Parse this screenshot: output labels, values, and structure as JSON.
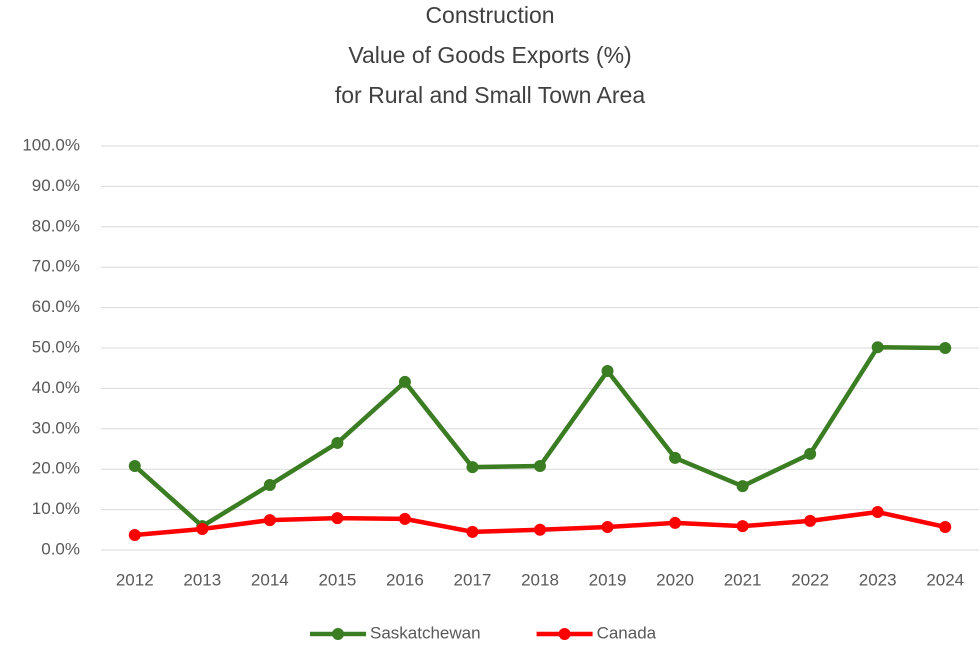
{
  "chart_data": {
    "type": "line",
    "title": [
      "Construction",
      "Value of Goods Exports (%)",
      "for Rural and Small Town Area"
    ],
    "categories": [
      "2012",
      "2013",
      "2014",
      "2015",
      "2016",
      "2017",
      "2018",
      "2019",
      "2020",
      "2021",
      "2022",
      "2023",
      "2024"
    ],
    "series": [
      {
        "name": "Saskatchewan",
        "color": "#3a7d22",
        "values": [
          20.8,
          5.9,
          16.1,
          26.5,
          41.6,
          20.5,
          20.8,
          44.3,
          22.8,
          15.8,
          23.8,
          50.2,
          50.0
        ]
      },
      {
        "name": "Canada",
        "color": "#ff0000",
        "values": [
          3.7,
          5.2,
          7.4,
          7.9,
          7.7,
          4.5,
          5.0,
          5.7,
          6.7,
          5.9,
          7.2,
          9.4,
          5.7
        ]
      }
    ],
    "ylim": [
      0,
      100
    ],
    "yticks": [
      {
        "value": 0,
        "label": "0.0%"
      },
      {
        "value": 10,
        "label": "10.0%"
      },
      {
        "value": 20,
        "label": "20.0%"
      },
      {
        "value": 30,
        "label": "30.0%"
      },
      {
        "value": 40,
        "label": "40.0%"
      },
      {
        "value": 50,
        "label": "50.0%"
      },
      {
        "value": 60,
        "label": "60.0%"
      },
      {
        "value": 70,
        "label": "70.0%"
      },
      {
        "value": 80,
        "label": "80.0%"
      },
      {
        "value": 90,
        "label": "90.0%"
      },
      {
        "value": 100,
        "label": "100.0%"
      }
    ],
    "grid": true,
    "legend": "bottom"
  }
}
